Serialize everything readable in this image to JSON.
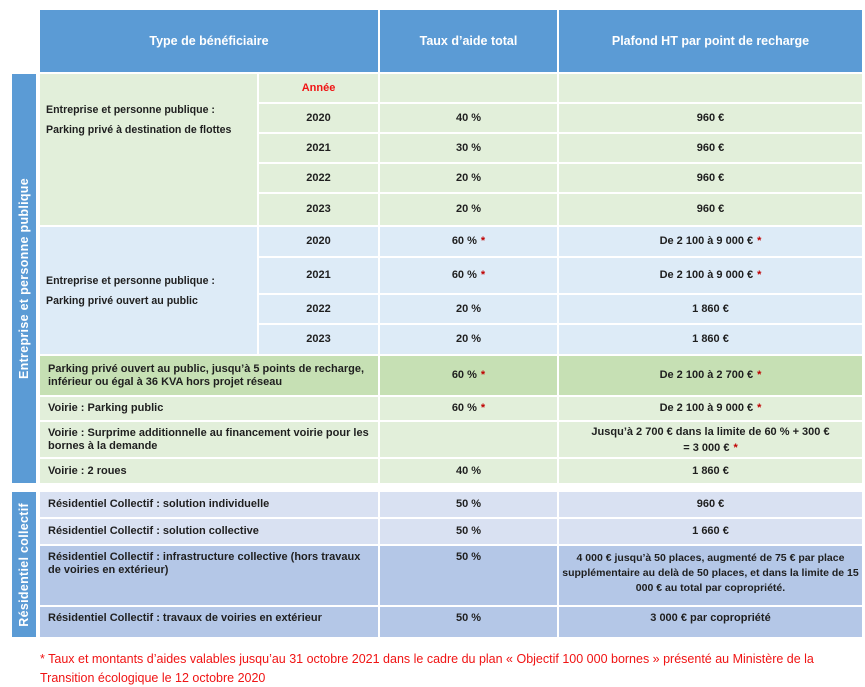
{
  "header": {
    "beneficiaire": "Type de bénéficiaire",
    "taux": "Taux d’aide total",
    "plafond": "Plafond HT par point de recharge"
  },
  "side_labels": {
    "entreprise": "Entreprise et personne publique",
    "residentiel": "Résidentiel collectif"
  },
  "colors": {
    "header_blue": "#5B9BD5",
    "pale_green": "#E2EFDA",
    "mid_green": "#C6E0B4",
    "pale_blue": "#DDEBF7",
    "pale_lavender": "#D9E1F2",
    "mid_lavender": "#B4C7E7",
    "note_red": "#C00000",
    "text_red": "#F01414"
  },
  "sectionA": {
    "block1": {
      "label_line1": "Entreprise et personne publique :",
      "label_line2": "Parking privé à destination de flottes",
      "year_header": "Année",
      "rows": [
        {
          "year": "2020",
          "taux": "40 %",
          "plafond": "960 €"
        },
        {
          "year": "2021",
          "taux": "30 %",
          "plafond": "960 €"
        },
        {
          "year": "2022",
          "taux": "20 %",
          "plafond": "960 €"
        },
        {
          "year": "2023",
          "taux": "20 %",
          "plafond": "960 €"
        }
      ]
    },
    "block2": {
      "label_line1": "Entreprise et personne publique :",
      "label_line2": "Parking privé ouvert au public",
      "rows": [
        {
          "year": "2020",
          "taux": "60 %",
          "taux_note": "*",
          "plafond": "De 2 100 à 9 000 €",
          "plafond_note": "*"
        },
        {
          "year": "2021",
          "taux": "60 %",
          "taux_note": "*",
          "plafond": "De 2 100 à 9 000 €",
          "plafond_note": "*"
        },
        {
          "year": "2022",
          "taux": "20 %",
          "plafond": "1 860 €"
        },
        {
          "year": "2023",
          "taux": "20 %",
          "plafond": "1 860 €"
        }
      ]
    },
    "rows": [
      {
        "label": "Parking privé ouvert au public, jusqu’à 5 points de recharge, inférieur ou égal à 36 KVA hors projet réseau",
        "taux": "60 %",
        "taux_note": "*",
        "plafond": "De 2 100 à 2 700 €",
        "plafond_note": "*"
      },
      {
        "label": "Voirie : Parking public",
        "taux": "60 %",
        "taux_note": "*",
        "plafond": "De 2 100 à 9 000 €",
        "plafond_note": "*"
      },
      {
        "label": "Voirie : Surprime additionnelle au financement voirie pour les bornes à la demande",
        "taux": "",
        "plafond_line1": "Jusqu’à 2 700 € dans la limite de 60 % + 300 €",
        "plafond_line2": "= 3 000 €",
        "plafond_note": "*"
      },
      {
        "label": "Voirie : 2 roues",
        "taux": "40 %",
        "plafond": "1 860 €"
      }
    ]
  },
  "sectionB": {
    "rows": [
      {
        "label": "Résidentiel Collectif : solution individuelle",
        "taux": "50 %",
        "plafond": "960 €"
      },
      {
        "label": "Résidentiel Collectif : solution collective",
        "taux": "50 %",
        "plafond": "1 660 €"
      },
      {
        "label": "Résidentiel Collectif : infrastructure collective (hors travaux de voiries en extérieur)",
        "taux": "50 %",
        "plafond": "4 000 € jusqu’à 50 places, augmenté de 75 € par place supplémentaire au delà de 50 places, et dans la limite de 15 000 € au total par copropriété."
      },
      {
        "label": "Résidentiel Collectif : travaux de voiries en extérieur",
        "taux": "50 %",
        "plafond": "3 000 € par copropriété"
      }
    ]
  },
  "footnote": "* Taux et montants d’aides valables jusqu’au 31 octobre 2021 dans le cadre du plan « Objectif 100 000 bornes » présenté au Ministère de la Transition écologique le 12 octobre 2020"
}
